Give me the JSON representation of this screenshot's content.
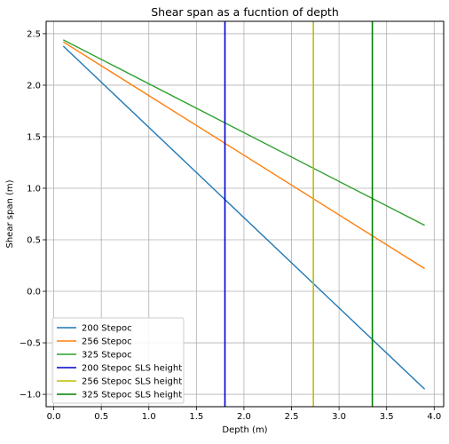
{
  "chart_data": {
    "type": "line",
    "title": "Shear span as a fucntion of depth",
    "xlabel": "Depth (m)",
    "ylabel": "Shear span (m)",
    "xlim": [
      -0.08,
      4.1
    ],
    "ylim": [
      -1.12,
      2.62
    ],
    "xticks": [
      0.0,
      0.5,
      1.0,
      1.5,
      2.0,
      2.5,
      3.0,
      3.5,
      4.0
    ],
    "xtick_labels": [
      "0.0",
      "0.5",
      "1.0",
      "1.5",
      "2.0",
      "2.5",
      "3.0",
      "3.5",
      "4.0"
    ],
    "yticks": [
      -1.0,
      -0.5,
      0.0,
      0.5,
      1.0,
      1.5,
      2.0,
      2.5
    ],
    "ytick_labels": [
      "−1.0",
      "−0.5",
      "0.0",
      "0.5",
      "1.0",
      "1.5",
      "2.0",
      "2.5"
    ],
    "grid": true,
    "legend_position": "lower-left",
    "series": [
      {
        "name": "200 Stepoc",
        "kind": "line",
        "color": "#1f77b4",
        "x": [
          0.1,
          3.9
        ],
        "y": [
          2.38,
          -0.95
        ]
      },
      {
        "name": "256 Stepoc",
        "kind": "line",
        "color": "#ff7f0e",
        "x": [
          0.1,
          3.9
        ],
        "y": [
          2.42,
          0.22
        ]
      },
      {
        "name": "325 Stepoc",
        "kind": "line",
        "color": "#2ca02c",
        "x": [
          0.1,
          3.9
        ],
        "y": [
          2.44,
          0.64
        ]
      },
      {
        "name": "200 Stepoc SLS height",
        "kind": "vline",
        "color": "#0000cc",
        "x": 1.8
      },
      {
        "name": "256 Stepoc SLS height",
        "kind": "vline",
        "color": "#bfbf00",
        "x": 2.73
      },
      {
        "name": "325 Stepoc SLS height",
        "kind": "vline",
        "color": "#008000",
        "x": 3.35
      }
    ]
  }
}
